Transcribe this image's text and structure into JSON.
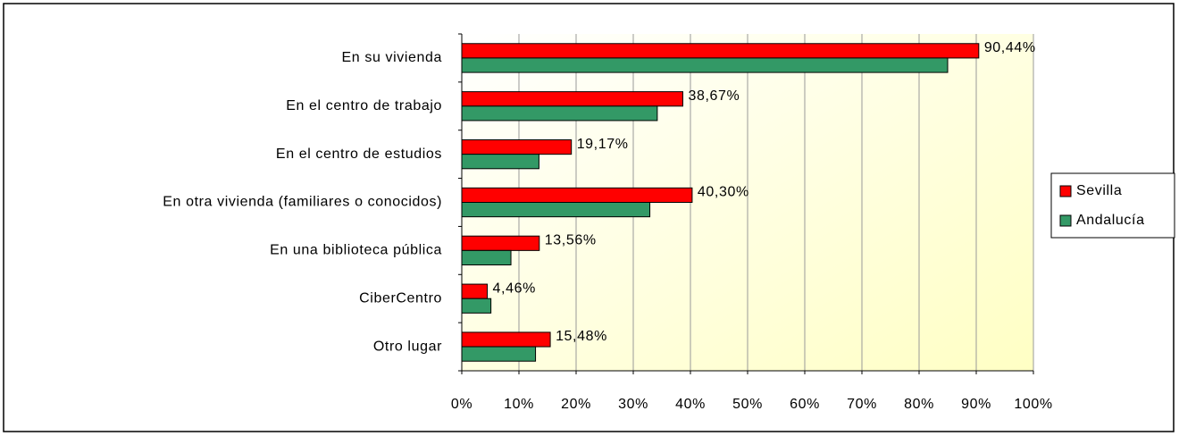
{
  "chart_data": {
    "type": "bar",
    "orientation": "horizontal",
    "categories": [
      "En su vivienda",
      "En el centro de trabajo",
      "En el centro de estudios",
      "En otra vivienda (familiares o conocidos)",
      "En una biblioteca pública",
      "CiberCentro",
      "Otro lugar"
    ],
    "series": [
      {
        "name": "Sevilla",
        "color": "#ff0000",
        "values": [
          90.44,
          38.67,
          19.17,
          40.3,
          13.56,
          4.46,
          15.48
        ],
        "value_labels": [
          "90,44%",
          "38,67%",
          "19,17%",
          "40,30%",
          "13,56%",
          "4,46%",
          "15,48%"
        ]
      },
      {
        "name": "Andalucía",
        "color": "#339966",
        "values": [
          85,
          34.2,
          13.5,
          32.9,
          8.6,
          5.1,
          12.9
        ]
      }
    ],
    "xlim": [
      0,
      100
    ],
    "xticks": [
      {
        "value": 0,
        "label": "0%"
      },
      {
        "value": 10,
        "label": "10%"
      },
      {
        "value": 20,
        "label": "20%"
      },
      {
        "value": 30,
        "label": "30%"
      },
      {
        "value": 40,
        "label": "40%"
      },
      {
        "value": 50,
        "label": "50%"
      },
      {
        "value": 60,
        "label": "60%"
      },
      {
        "value": 70,
        "label": "70%"
      },
      {
        "value": 80,
        "label": "80%"
      },
      {
        "value": 90,
        "label": "90%"
      },
      {
        "value": 100,
        "label": "100%"
      }
    ],
    "grid": true,
    "legend": "right"
  }
}
